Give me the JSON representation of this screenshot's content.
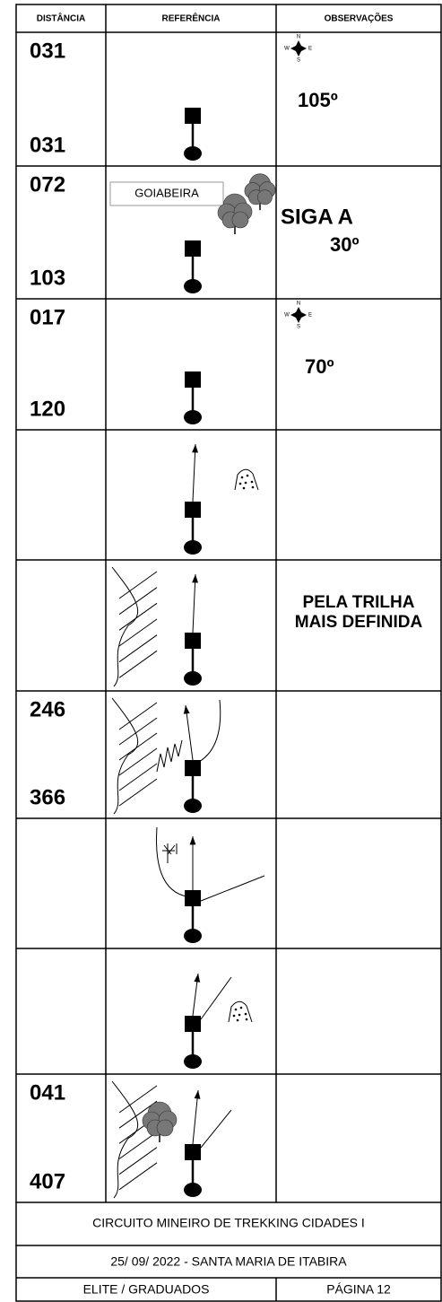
{
  "header": {
    "columns": [
      "DISTÂNCIA",
      "REFERÊNCIA",
      "OBSERVAÇÕES"
    ]
  },
  "rows": [
    {
      "distance_top": "031",
      "distance_bottom": "031",
      "compass": [
        "N",
        "W",
        "E",
        "S"
      ],
      "observation": [
        "105º"
      ]
    },
    {
      "distance_top": "072",
      "distance_bottom": "103",
      "label": "GOIABEIRA",
      "observation": [
        "SIGA A",
        "30º"
      ]
    },
    {
      "distance_top": "017",
      "distance_bottom": "120",
      "compass": [
        "N",
        "W",
        "E",
        "S"
      ],
      "observation": [
        "70º"
      ]
    },
    {},
    {
      "observation": [
        "PELA TRILHA",
        "MAIS DEFINIDA"
      ]
    },
    {
      "distance_top": "246",
      "distance_bottom": "366"
    },
    {},
    {},
    {
      "distance_top": "041",
      "distance_bottom": "407"
    }
  ],
  "footer": {
    "event": "CIRCUITO MINEIRO DE TREKKING CIDADES I",
    "date": "25/ 09/ 2022  - SANTA MARIA DE ITABIRA",
    "category": "ELITE / GRADUADOS",
    "page": "PÁGINA 12"
  }
}
